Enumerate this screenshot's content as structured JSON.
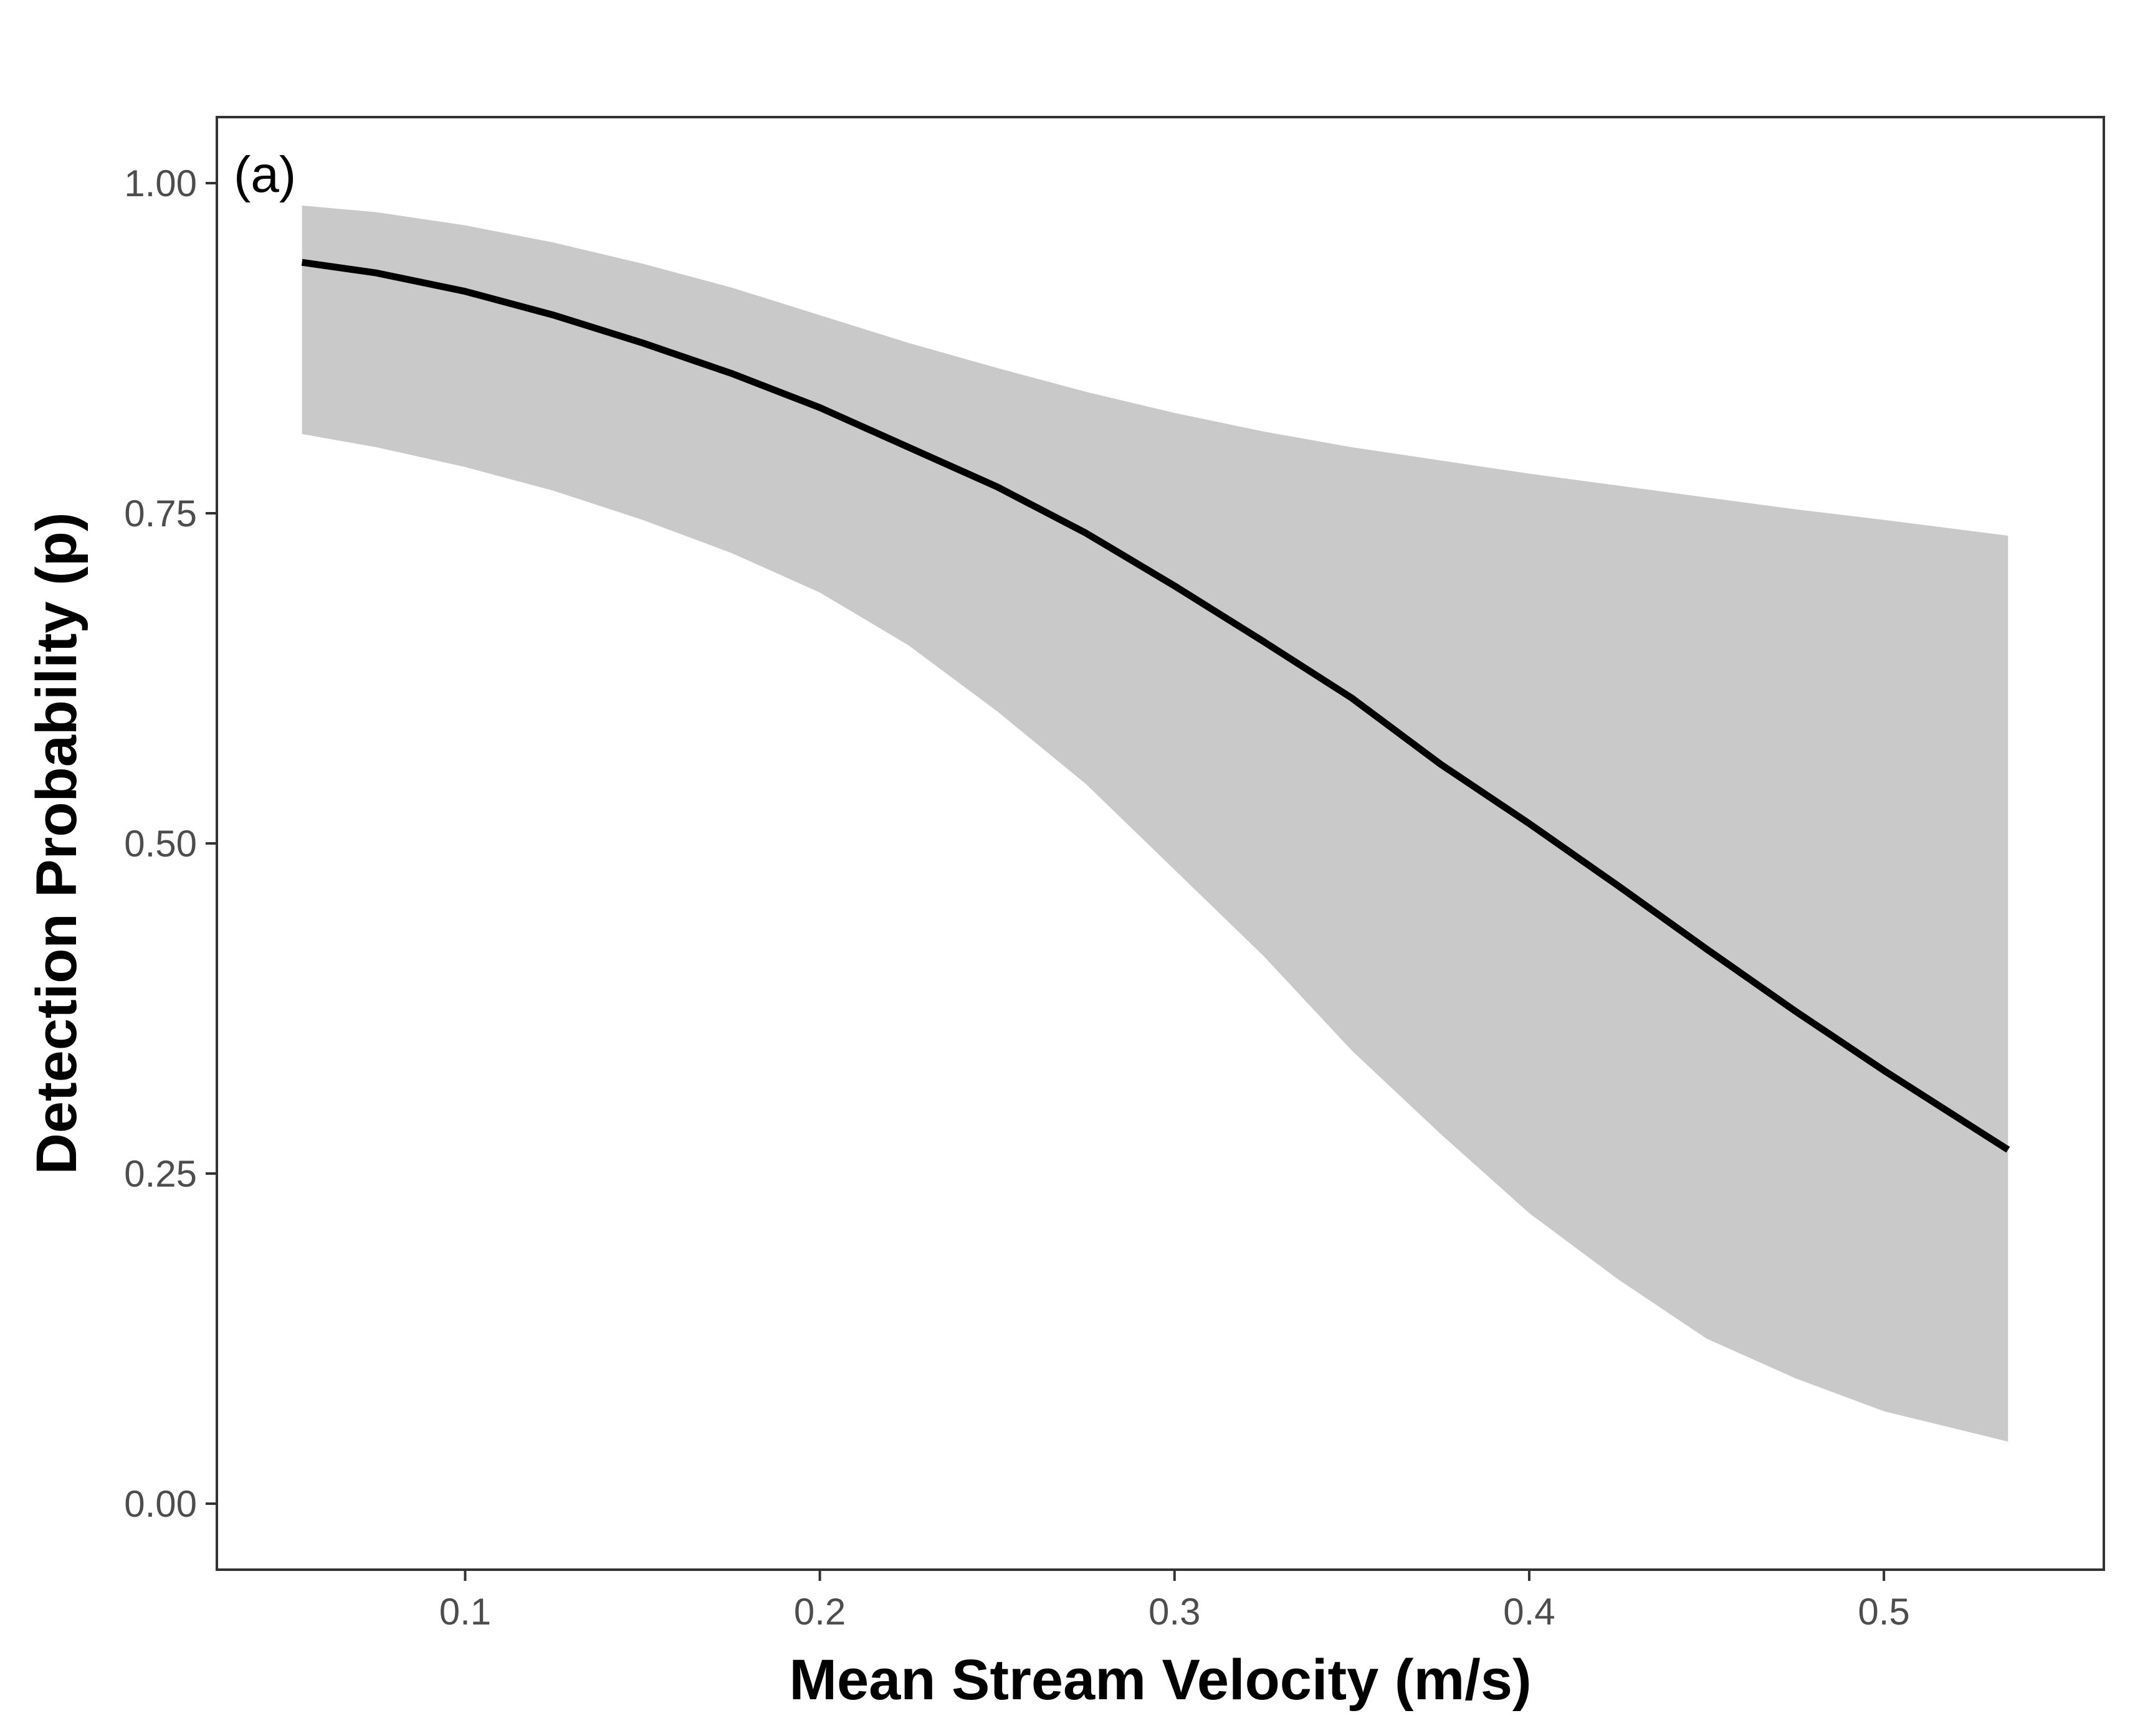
{
  "chart_data": {
    "type": "line",
    "panel_label": "(a)",
    "xlabel": "Mean Stream Velocity (m/s)",
    "ylabel": "Detection Probability (p)",
    "xlim": [
      0.03,
      0.562
    ],
    "ylim": [
      -0.05,
      1.05
    ],
    "x_ticks": [
      0.1,
      0.2,
      0.3,
      0.4,
      0.5
    ],
    "x_tick_labels": [
      "0.1",
      "0.2",
      "0.3",
      "0.4",
      "0.5"
    ],
    "y_ticks": [
      0.0,
      0.25,
      0.5,
      0.75,
      1.0
    ],
    "y_tick_labels": [
      "0.00",
      "0.25",
      "0.50",
      "0.75",
      "1.00"
    ],
    "grid": false,
    "colors": {
      "line": "#000000",
      "ribbon": "#c9c9c9",
      "frame": "#333333"
    },
    "series": [
      {
        "x": [
          0.054,
          0.075,
          0.1,
          0.125,
          0.15,
          0.175,
          0.2,
          0.225,
          0.25,
          0.275,
          0.3,
          0.325,
          0.35,
          0.375,
          0.4,
          0.425,
          0.45,
          0.475,
          0.5,
          0.535
        ],
        "y": [
          0.94,
          0.932,
          0.918,
          0.9,
          0.879,
          0.856,
          0.83,
          0.8,
          0.77,
          0.735,
          0.695,
          0.653,
          0.61,
          0.56,
          0.515,
          0.468,
          0.42,
          0.373,
          0.328,
          0.268
        ],
        "lower": [
          0.81,
          0.8,
          0.785,
          0.767,
          0.745,
          0.72,
          0.69,
          0.65,
          0.6,
          0.545,
          0.48,
          0.415,
          0.343,
          0.28,
          0.22,
          0.17,
          0.125,
          0.095,
          0.07,
          0.047
        ],
        "upper": [
          0.983,
          0.978,
          0.968,
          0.955,
          0.939,
          0.921,
          0.9,
          0.879,
          0.86,
          0.842,
          0.826,
          0.812,
          0.8,
          0.79,
          0.78,
          0.771,
          0.762,
          0.753,
          0.745,
          0.733
        ]
      }
    ]
  }
}
